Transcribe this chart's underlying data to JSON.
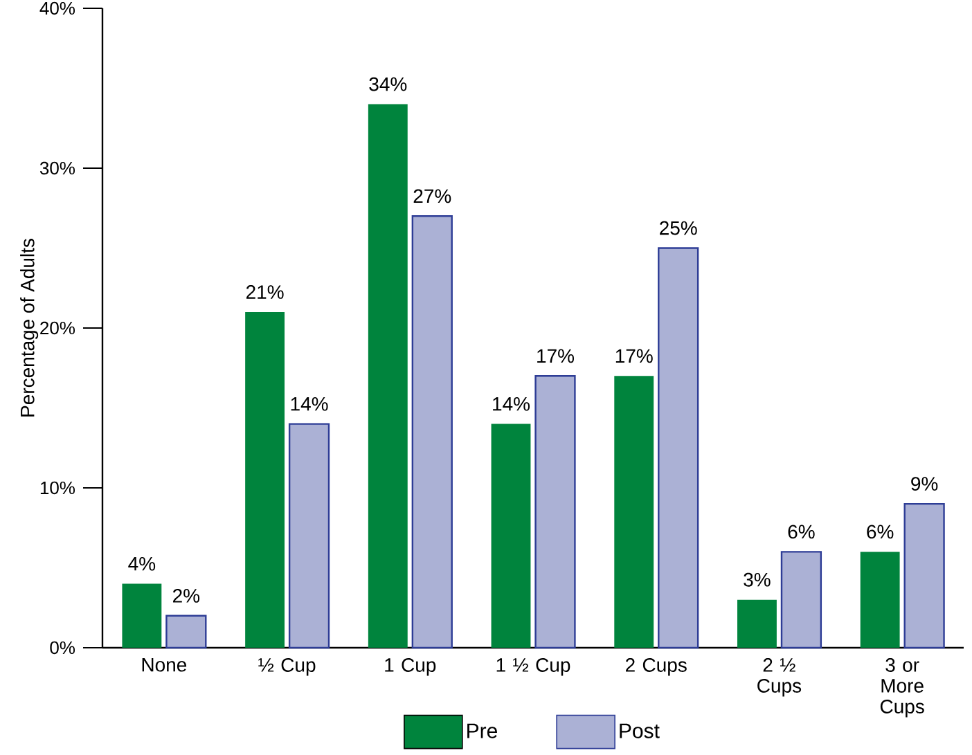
{
  "chart_data": {
    "type": "bar",
    "ylabel": "Percentage of Adults",
    "categories": [
      "None",
      "½ Cup",
      "1 Cup",
      "1 ½ Cup",
      "2 Cups",
      "2 ½  Cups",
      "3 or More Cups"
    ],
    "series": [
      {
        "name": "Pre",
        "color": "#00843d",
        "values": [
          4,
          21,
          34,
          14,
          17,
          3,
          6
        ],
        "value_labels": [
          "4%",
          "21%",
          "34%",
          "14%",
          "17%",
          "3%",
          "6%"
        ]
      },
      {
        "name": "Post",
        "color": "#2e3d96",
        "values": [
          2,
          14,
          27,
          17,
          25,
          6,
          9
        ],
        "value_labels": [
          "2%",
          "14%",
          "27%",
          "17%",
          "25%",
          "6%",
          "9%"
        ]
      }
    ],
    "ylim": [
      0,
      40
    ],
    "yticks": [
      {
        "value": 0,
        "label": "0%"
      },
      {
        "value": 10,
        "label": "10%"
      },
      {
        "value": 20,
        "label": "20%"
      },
      {
        "value": 30,
        "label": "30%"
      },
      {
        "value": 40,
        "label": "40%"
      }
    ],
    "legend": "bottom"
  }
}
